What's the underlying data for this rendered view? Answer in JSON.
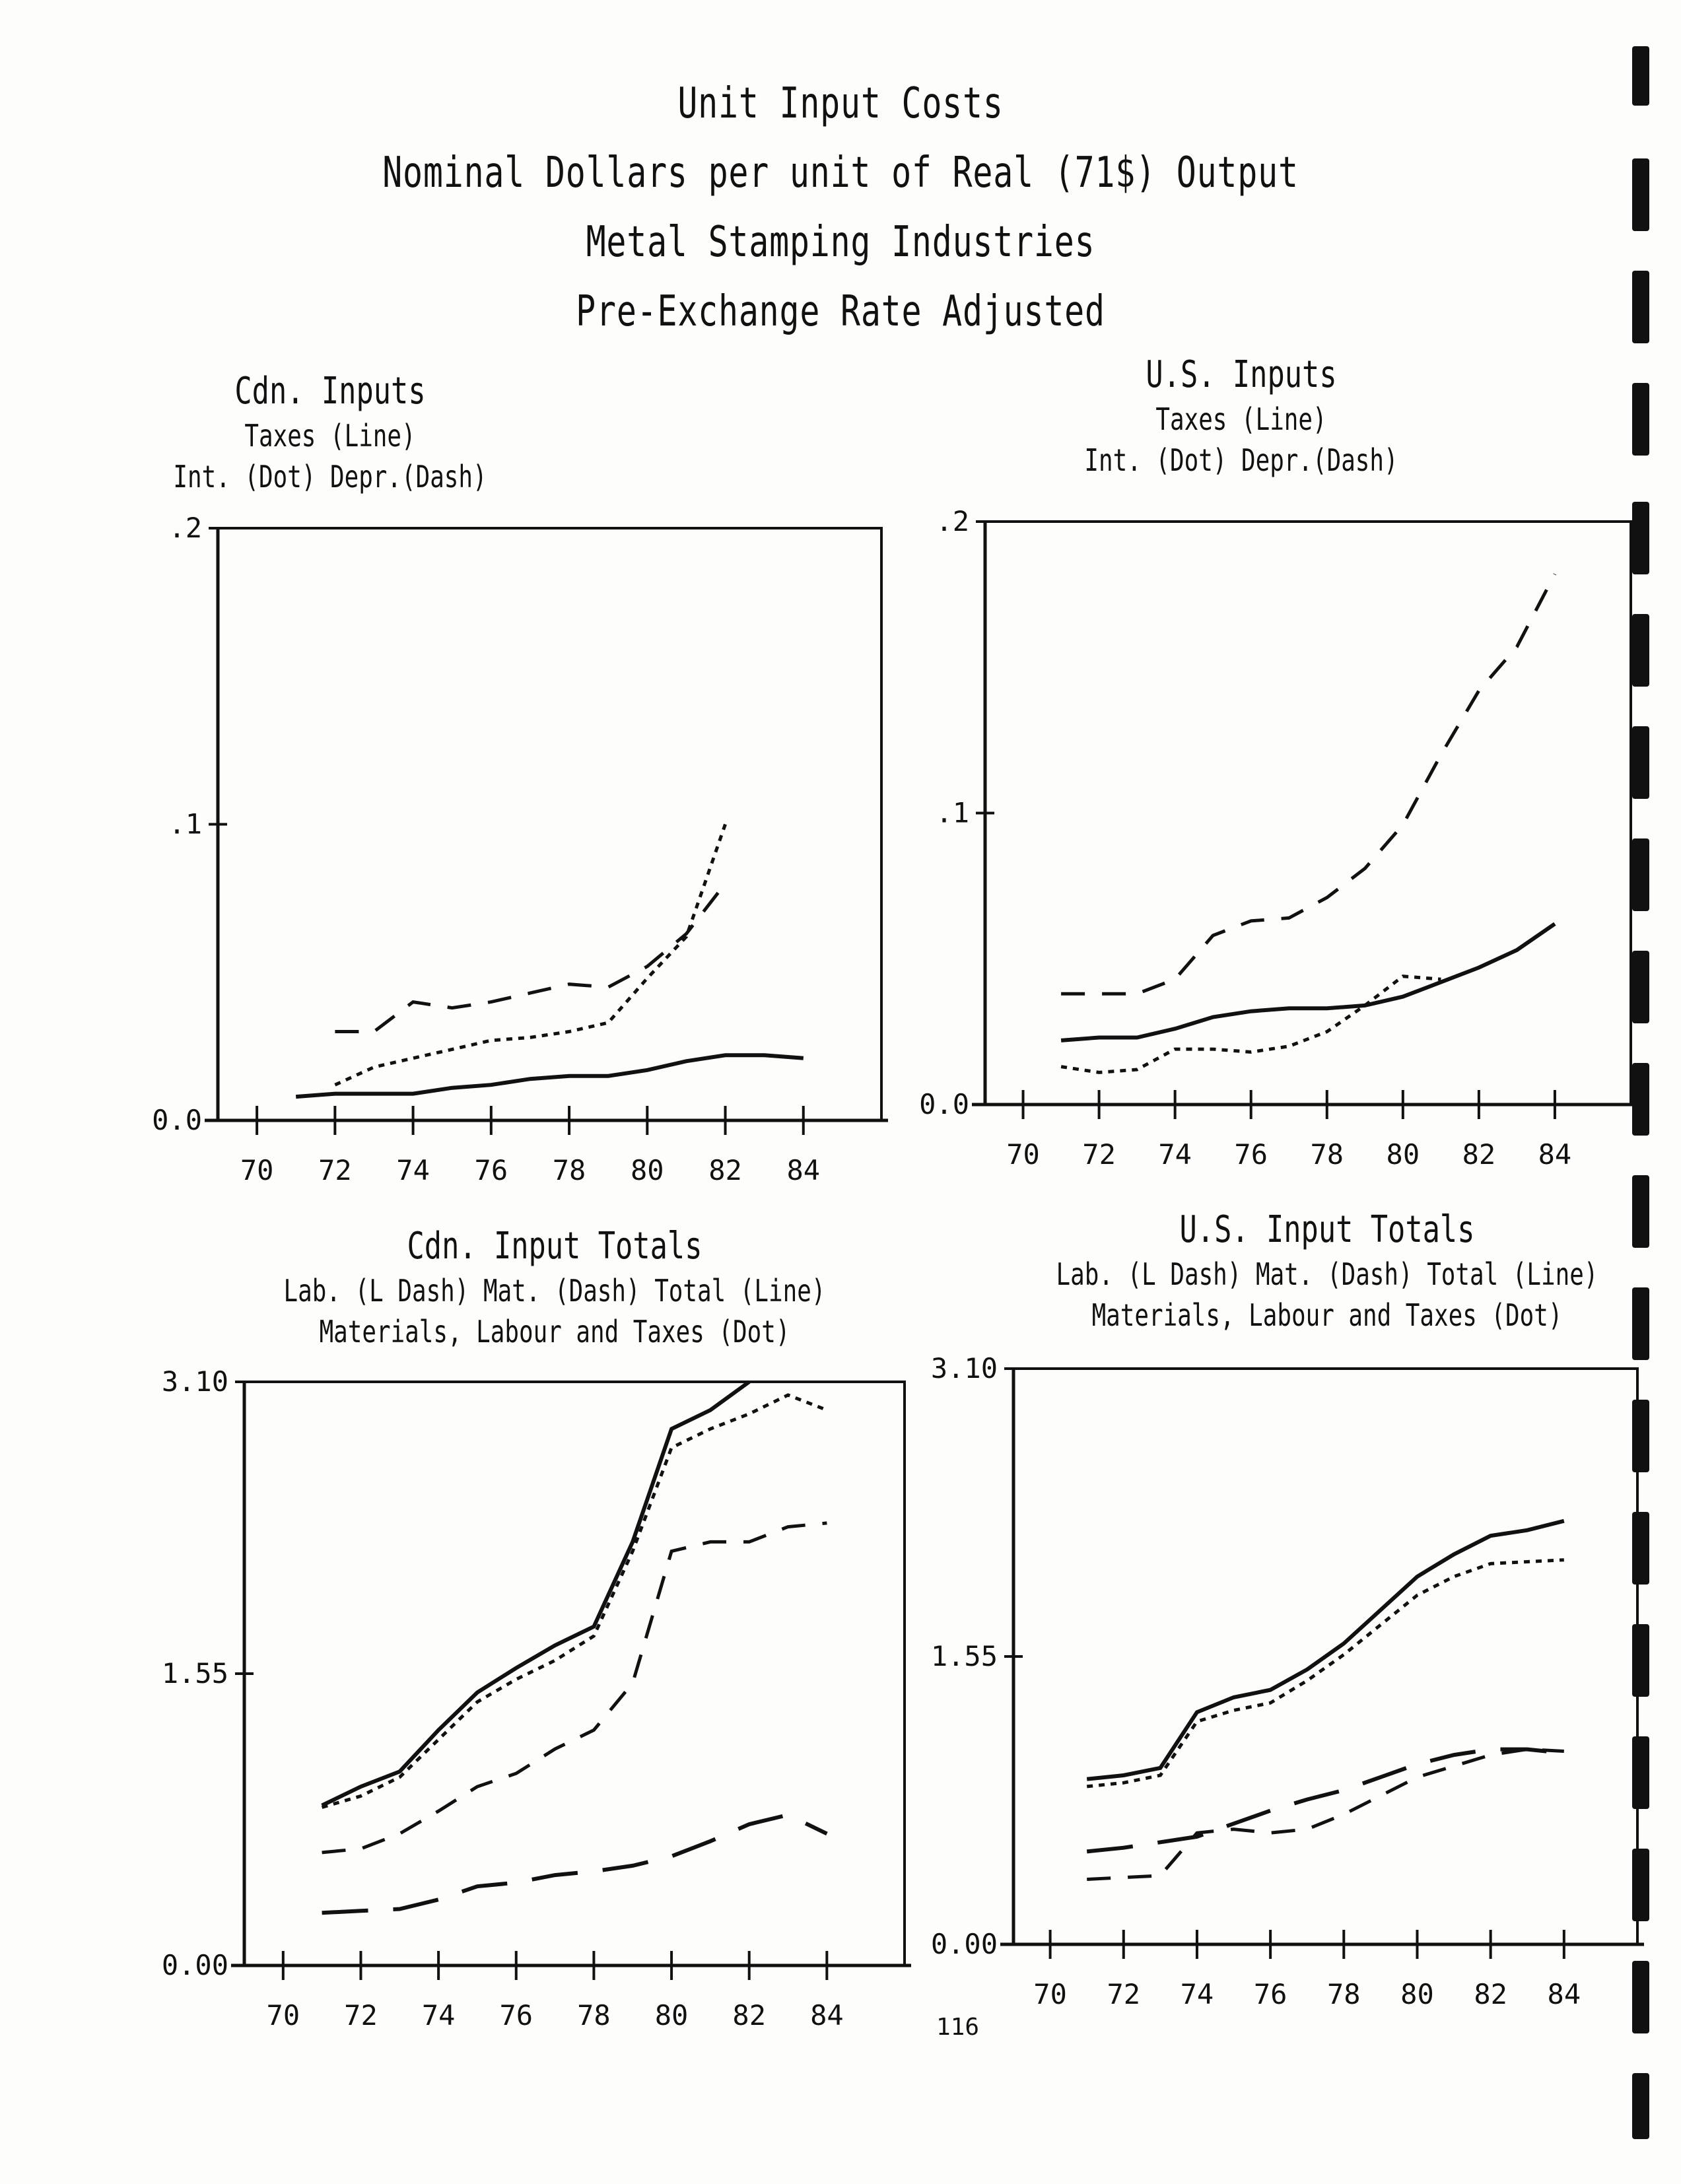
{
  "page": {
    "title_lines": [
      "Unit Input Costs",
      "Nominal Dollars per unit of Real (71$) Output",
      "Metal Stamping Industries",
      "Pre-Exchange Rate Adjusted"
    ],
    "page_number": "116"
  },
  "chart_data": [
    {
      "type": "line",
      "title": "Cdn. Inputs",
      "legend_lines": [
        "Taxes (Line)",
        "Int. (Dot)     Depr.(Dash)"
      ],
      "ylim": [
        0,
        0.2
      ],
      "yticks": [
        0,
        0.1,
        0.2
      ],
      "ytick_labels": [
        "0.0",
        ".1",
        ".2"
      ],
      "xlim": [
        69,
        86
      ],
      "xticks": [
        70,
        72,
        74,
        76,
        78,
        80,
        82,
        84
      ],
      "xtick_labels": [
        "70",
        "72",
        "74",
        "76",
        "78",
        "80",
        "82",
        "84"
      ],
      "series": [
        {
          "name": "Taxes",
          "style": "line",
          "x": [
            71,
            72,
            73,
            74,
            75,
            76,
            77,
            78,
            79,
            80,
            81,
            82,
            83,
            84
          ],
          "y": [
            0.008,
            0.009,
            0.009,
            0.009,
            0.011,
            0.012,
            0.014,
            0.015,
            0.015,
            0.017,
            0.02,
            0.022,
            0.022,
            0.021
          ]
        },
        {
          "name": "Int.",
          "style": "dot",
          "x": [
            72,
            73,
            74,
            75,
            76,
            77,
            78,
            79,
            80,
            81,
            82
          ],
          "y": [
            0.012,
            0.018,
            0.021,
            0.024,
            0.027,
            0.028,
            0.03,
            0.033,
            0.048,
            0.062,
            0.1
          ]
        },
        {
          "name": "Depr.",
          "style": "dash",
          "x": [
            72,
            73,
            74,
            75,
            76,
            77,
            78,
            79,
            80,
            81,
            82
          ],
          "y": [
            0.03,
            0.03,
            0.04,
            0.038,
            0.04,
            0.043,
            0.046,
            0.045,
            0.052,
            0.063,
            0.08
          ]
        }
      ]
    },
    {
      "type": "line",
      "title": "U.S. Inputs",
      "legend_lines": [
        "Taxes (Line)",
        "Int. (Dot)     Depr.(Dash)"
      ],
      "ylim": [
        0,
        0.2
      ],
      "yticks": [
        0,
        0.1,
        0.2
      ],
      "ytick_labels": [
        "0.0",
        ".1",
        ".2"
      ],
      "xlim": [
        69,
        86
      ],
      "xticks": [
        70,
        72,
        74,
        76,
        78,
        80,
        82,
        84
      ],
      "xtick_labels": [
        "70",
        "72",
        "74",
        "76",
        "78",
        "80",
        "82",
        "84"
      ],
      "series": [
        {
          "name": "Taxes",
          "style": "line",
          "x": [
            71,
            72,
            73,
            74,
            75,
            76,
            77,
            78,
            79,
            80,
            81,
            82,
            83,
            84
          ],
          "y": [
            0.022,
            0.023,
            0.023,
            0.026,
            0.03,
            0.032,
            0.033,
            0.033,
            0.034,
            0.037,
            0.042,
            0.047,
            0.053,
            0.062
          ]
        },
        {
          "name": "Int.",
          "style": "dot",
          "x": [
            71,
            72,
            73,
            74,
            75,
            76,
            77,
            78,
            79,
            80,
            81
          ],
          "y": [
            0.013,
            0.011,
            0.012,
            0.019,
            0.019,
            0.018,
            0.02,
            0.025,
            0.034,
            0.044,
            0.043
          ]
        },
        {
          "name": "Depr.",
          "style": "dash",
          "x": [
            71,
            72,
            73,
            74,
            75,
            76,
            77,
            78,
            79,
            80,
            81,
            82,
            83,
            84
          ],
          "y": [
            0.038,
            0.038,
            0.038,
            0.043,
            0.058,
            0.063,
            0.064,
            0.071,
            0.081,
            0.096,
            0.12,
            0.142,
            0.157,
            0.182
          ]
        }
      ]
    },
    {
      "type": "line",
      "title": "Cdn. Input Totals",
      "legend_lines": [
        "Lab. (L Dash)     Mat. (Dash)     Total (Line)",
        "Materials, Labour and Taxes (Dot)"
      ],
      "ylim": [
        0,
        3.1
      ],
      "yticks": [
        0,
        1.55,
        3.1
      ],
      "ytick_labels": [
        "0.00",
        "1.55",
        "3.10"
      ],
      "xlim": [
        69,
        86
      ],
      "xticks": [
        70,
        72,
        74,
        76,
        78,
        80,
        82,
        84
      ],
      "xtick_labels": [
        "70",
        "72",
        "74",
        "76",
        "78",
        "80",
        "82",
        "84"
      ],
      "series": [
        {
          "name": "Lab.",
          "style": "ldash",
          "x": [
            71,
            72,
            73,
            74,
            75,
            76,
            77,
            78,
            79,
            80,
            81,
            82,
            83,
            84
          ],
          "y": [
            0.28,
            0.29,
            0.3,
            0.35,
            0.42,
            0.44,
            0.48,
            0.5,
            0.53,
            0.58,
            0.66,
            0.75,
            0.8,
            0.7
          ]
        },
        {
          "name": "Mat.",
          "style": "dash",
          "x": [
            71,
            72,
            73,
            74,
            75,
            76,
            77,
            78,
            79,
            80,
            81,
            82,
            83,
            84
          ],
          "y": [
            0.6,
            0.62,
            0.7,
            0.82,
            0.95,
            1.02,
            1.15,
            1.25,
            1.5,
            2.2,
            2.25,
            2.25,
            2.33,
            2.35
          ]
        },
        {
          "name": "Total",
          "style": "line",
          "x": [
            71,
            72,
            73,
            74,
            75,
            76,
            77,
            78,
            79,
            80,
            81,
            82
          ],
          "y": [
            0.85,
            0.95,
            1.03,
            1.25,
            1.45,
            1.58,
            1.7,
            1.8,
            2.25,
            2.85,
            2.95,
            3.1
          ]
        },
        {
          "name": "Materials, Labour and Taxes",
          "style": "dot",
          "x": [
            71,
            72,
            73,
            74,
            75,
            76,
            77,
            78,
            79,
            80,
            81,
            82,
            83,
            84
          ],
          "y": [
            0.84,
            0.9,
            1.0,
            1.2,
            1.4,
            1.52,
            1.62,
            1.75,
            2.2,
            2.75,
            2.85,
            2.93,
            3.03,
            2.95
          ]
        }
      ]
    },
    {
      "type": "line",
      "title": "U.S. Input Totals",
      "legend_lines": [
        "Lab. (L Dash)     Mat. (Dash)     Total (Line)",
        "Materials, Labour and Taxes (Dot)"
      ],
      "ylim": [
        0,
        3.1
      ],
      "yticks": [
        0,
        1.55,
        3.1
      ],
      "ytick_labels": [
        "0.00",
        "1.55",
        "3.10"
      ],
      "xlim": [
        69,
        86
      ],
      "xticks": [
        70,
        72,
        74,
        76,
        78,
        80,
        82,
        84
      ],
      "xtick_labels": [
        "70",
        "72",
        "74",
        "76",
        "78",
        "80",
        "82",
        "84"
      ],
      "series": [
        {
          "name": "Lab.",
          "style": "ldash",
          "x": [
            71,
            72,
            73,
            74,
            75,
            76,
            77,
            78,
            79,
            80,
            81,
            82,
            83,
            84
          ],
          "y": [
            0.5,
            0.52,
            0.55,
            0.58,
            0.65,
            0.72,
            0.78,
            0.83,
            0.9,
            0.97,
            1.02,
            1.05,
            1.05,
            1.03
          ]
        },
        {
          "name": "Mat.",
          "style": "dash",
          "x": [
            71,
            72,
            73,
            74,
            75,
            76,
            77,
            78,
            79,
            80,
            81,
            82,
            83,
            84
          ],
          "y": [
            0.35,
            0.36,
            0.37,
            0.6,
            0.62,
            0.6,
            0.62,
            0.7,
            0.8,
            0.9,
            0.96,
            1.02,
            1.05,
            1.04
          ]
        },
        {
          "name": "Total",
          "style": "line",
          "x": [
            71,
            72,
            73,
            74,
            75,
            76,
            77,
            78,
            79,
            80,
            81,
            82,
            83,
            84
          ],
          "y": [
            0.89,
            0.91,
            0.95,
            1.25,
            1.33,
            1.37,
            1.48,
            1.62,
            1.8,
            1.98,
            2.1,
            2.2,
            2.23,
            2.28
          ]
        },
        {
          "name": "Materials, Labour and Taxes",
          "style": "dot",
          "x": [
            71,
            72,
            73,
            74,
            75,
            76,
            77,
            78,
            79,
            80,
            81,
            82,
            83,
            84
          ],
          "y": [
            0.85,
            0.87,
            0.91,
            1.2,
            1.26,
            1.3,
            1.42,
            1.56,
            1.72,
            1.88,
            1.98,
            2.05,
            2.06,
            2.07
          ]
        }
      ]
    }
  ]
}
